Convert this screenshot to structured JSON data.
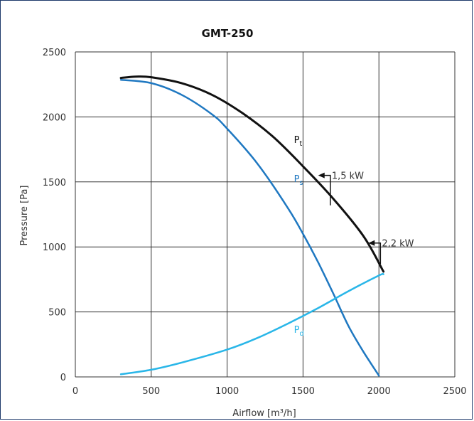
{
  "chart_data": {
    "type": "line",
    "title": "GMT-250",
    "xlabel": "Airflow [m³/h]",
    "ylabel": "Pressure [Pa]",
    "xlim": [
      0,
      2500
    ],
    "ylim": [
      0,
      2500
    ],
    "x_ticks": [
      "0",
      "500",
      "1000",
      "1500",
      "2000",
      "2500"
    ],
    "y_ticks": [
      "0",
      "500",
      "1000",
      "1500",
      "2000",
      "2500"
    ],
    "grid": true,
    "series": [
      {
        "name": "Pt",
        "color": "#111111",
        "points": [
          [
            300,
            2300
          ],
          [
            400,
            2310
          ],
          [
            500,
            2305
          ],
          [
            700,
            2260
          ],
          [
            900,
            2170
          ],
          [
            1100,
            2030
          ],
          [
            1300,
            1850
          ],
          [
            1500,
            1620
          ],
          [
            1700,
            1370
          ],
          [
            1900,
            1080
          ],
          [
            2030,
            810
          ]
        ]
      },
      {
        "name": "Ps",
        "color": "#1f78c1",
        "points": [
          [
            300,
            2285
          ],
          [
            500,
            2260
          ],
          [
            700,
            2170
          ],
          [
            900,
            2020
          ],
          [
            1000,
            1910
          ],
          [
            1200,
            1640
          ],
          [
            1400,
            1300
          ],
          [
            1500,
            1100
          ],
          [
            1600,
            880
          ],
          [
            1700,
            640
          ],
          [
            1800,
            390
          ],
          [
            1900,
            190
          ],
          [
            2000,
            10
          ]
        ]
      },
      {
        "name": "Pd",
        "color": "#29b6e8",
        "points": [
          [
            300,
            20
          ],
          [
            500,
            55
          ],
          [
            700,
            110
          ],
          [
            1000,
            210
          ],
          [
            1200,
            300
          ],
          [
            1400,
            410
          ],
          [
            1600,
            530
          ],
          [
            1800,
            660
          ],
          [
            2000,
            780
          ],
          [
            2030,
            790
          ]
        ]
      }
    ],
    "series_labels": [
      {
        "base": "P",
        "sub": "t",
        "color": "#111111",
        "x": 1440,
        "y": 1800
      },
      {
        "base": "P",
        "sub": "s",
        "color": "#1f78c1",
        "x": 1440,
        "y": 1500
      },
      {
        "base": "P",
        "sub": "d",
        "color": "#29b6e8",
        "x": 1440,
        "y": 340
      }
    ],
    "annotations": [
      {
        "text": "1,5 kW",
        "arrow_to": [
          1600,
          1550
        ],
        "corner_x": 1680,
        "corner_y": 1550,
        "down_to_y": 1320
      },
      {
        "text": "2,2 kW",
        "arrow_to": [
          1930,
          1030
        ],
        "corner_x": 2010,
        "corner_y": 1030,
        "down_to_y": 870
      }
    ]
  }
}
